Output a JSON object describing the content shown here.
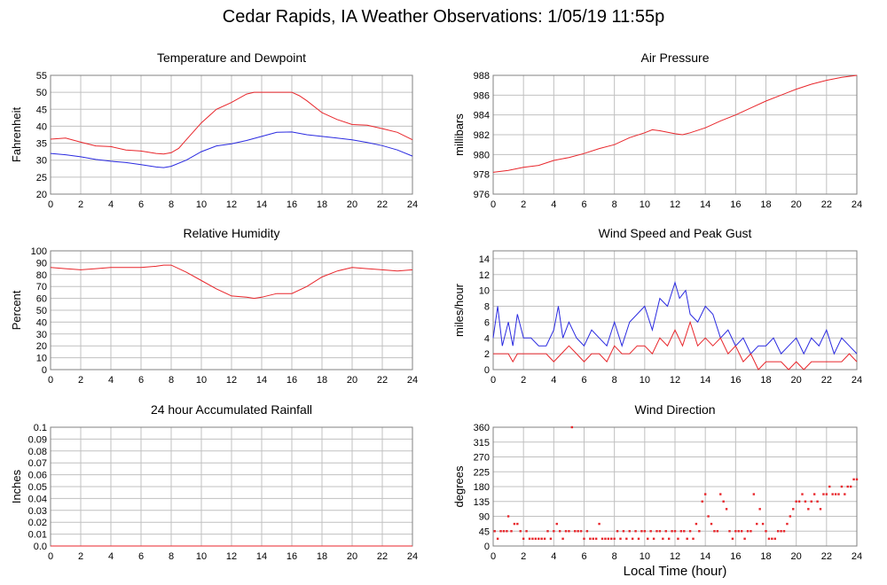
{
  "title": "Cedar Rapids, IA Weather Observations: 1/05/19 11:55p",
  "xlabel": "Local Time (hour)",
  "colors": {
    "primary": "#e8262b",
    "secondary": "#2a2ae0",
    "grid": "#c0c0c0"
  },
  "chart_data": [
    {
      "id": "temp",
      "type": "line",
      "title": "Temperature and Dewpoint",
      "ylabel": "Fahrenheit",
      "xlim": [
        0,
        24
      ],
      "ylim": [
        20,
        55
      ],
      "xticks": [
        "0",
        "2",
        "4",
        "6",
        "8",
        "10",
        "12",
        "14",
        "16",
        "18",
        "20",
        "22",
        "24"
      ],
      "yticks": [
        "20",
        "25",
        "30",
        "35",
        "40",
        "45",
        "50",
        "55"
      ],
      "series": [
        {
          "color": "#e8262b",
          "x": [
            0,
            1,
            2,
            3,
            4,
            5,
            6,
            7,
            7.5,
            8,
            8.5,
            9,
            10,
            11,
            12,
            13,
            13.5,
            14,
            15,
            16,
            16.5,
            17,
            18,
            19,
            20,
            21,
            22,
            23,
            24
          ],
          "y": [
            36.2,
            36.5,
            35.3,
            34.2,
            34,
            33,
            32.7,
            32,
            31.8,
            32.2,
            33.5,
            36,
            41,
            45,
            47,
            49.5,
            50,
            50,
            50,
            50,
            49,
            47.5,
            44,
            42,
            40.5,
            40.3,
            39.3,
            38.2,
            36
          ]
        },
        {
          "color": "#2a2ae0",
          "x": [
            0,
            1,
            2,
            3,
            4,
            5,
            6,
            7,
            7.5,
            8,
            9,
            10,
            11,
            12,
            13,
            14,
            15,
            16,
            17,
            18,
            19,
            20,
            21,
            22,
            23,
            24
          ],
          "y": [
            32,
            31.6,
            31,
            30.2,
            29.7,
            29.3,
            28.7,
            28,
            27.8,
            28.2,
            30,
            32.5,
            34.2,
            34.8,
            35.8,
            37,
            38.2,
            38.3,
            37.5,
            37,
            36.5,
            36,
            35.2,
            34.3,
            33,
            31.2
          ]
        }
      ]
    },
    {
      "id": "pressure",
      "type": "line",
      "title": "Air Pressure",
      "ylabel": "millibars",
      "xlim": [
        0,
        24
      ],
      "ylim": [
        976,
        988
      ],
      "xticks": [
        "0",
        "2",
        "4",
        "6",
        "8",
        "10",
        "12",
        "14",
        "16",
        "18",
        "20",
        "22",
        "24"
      ],
      "yticks": [
        "976",
        "978",
        "980",
        "982",
        "984",
        "986",
        "988"
      ],
      "series": [
        {
          "color": "#e8262b",
          "x": [
            0,
            1,
            2,
            3,
            4,
            5,
            6,
            7,
            8,
            9,
            10,
            10.5,
            11,
            12,
            12.5,
            13,
            14,
            15,
            16,
            17,
            18,
            19,
            20,
            21,
            22,
            23,
            24
          ],
          "y": [
            978.2,
            978.4,
            978.7,
            978.9,
            979.4,
            979.7,
            980.1,
            980.6,
            981,
            981.7,
            982.2,
            982.5,
            982.4,
            982.1,
            982,
            982.2,
            982.7,
            983.4,
            984,
            984.7,
            985.4,
            986,
            986.6,
            987.1,
            987.5,
            987.8,
            988
          ]
        }
      ]
    },
    {
      "id": "humidity",
      "type": "line",
      "title": "Relative Humidity",
      "ylabel": "Percent",
      "xlim": [
        0,
        24
      ],
      "ylim": [
        0,
        100
      ],
      "xticks": [
        "0",
        "2",
        "4",
        "6",
        "8",
        "10",
        "12",
        "14",
        "16",
        "18",
        "20",
        "22",
        "24"
      ],
      "yticks": [
        "0",
        "10",
        "20",
        "30",
        "40",
        "50",
        "60",
        "70",
        "80",
        "90",
        "100"
      ],
      "series": [
        {
          "color": "#e8262b",
          "x": [
            0,
            1,
            2,
            3,
            4,
            5,
            6,
            7,
            7.5,
            8,
            9,
            10,
            11,
            12,
            13,
            13.5,
            14,
            15,
            16,
            17,
            18,
            19,
            20,
            21,
            22,
            23,
            24
          ],
          "y": [
            86,
            85,
            84,
            85,
            86,
            86,
            86,
            87,
            88,
            88,
            82,
            75,
            68,
            62,
            61,
            60,
            61,
            64,
            64,
            70,
            78,
            83,
            86,
            85,
            84,
            83,
            84
          ]
        }
      ]
    },
    {
      "id": "wind",
      "type": "line",
      "title": "Wind Speed and Peak Gust",
      "ylabel": "miles/hour",
      "xlim": [
        0,
        24
      ],
      "ylim": [
        0,
        15
      ],
      "xticks": [
        "0",
        "2",
        "4",
        "6",
        "8",
        "10",
        "12",
        "14",
        "16",
        "18",
        "20",
        "22",
        "24"
      ],
      "yticks": [
        "0",
        "2",
        "4",
        "6",
        "8",
        "10",
        "12",
        "14"
      ],
      "series": [
        {
          "color": "#2a2ae0",
          "x": [
            0,
            0.3,
            0.6,
            1,
            1.3,
            1.6,
            2,
            2.5,
            3,
            3.5,
            4,
            4.3,
            4.6,
            5,
            5.5,
            6,
            6.5,
            7,
            7.5,
            8,
            8.5,
            9,
            9.5,
            10,
            10.5,
            11,
            11.5,
            12,
            12.3,
            12.7,
            13,
            13.5,
            14,
            14.5,
            15,
            15.5,
            16,
            16.5,
            17,
            17.5,
            18,
            18.5,
            19,
            19.5,
            20,
            20.5,
            21,
            21.5,
            22,
            22.5,
            23,
            23.5,
            24
          ],
          "y": [
            4,
            8,
            3,
            6,
            3,
            7,
            4,
            4,
            3,
            3,
            5,
            8,
            4,
            6,
            4,
            3,
            5,
            4,
            3,
            6,
            3,
            6,
            7,
            8,
            5,
            9,
            8,
            11,
            9,
            10,
            7,
            6,
            8,
            7,
            4,
            5,
            3,
            4,
            2,
            3,
            3,
            4,
            2,
            3,
            4,
            2,
            4,
            3,
            5,
            2,
            4,
            3,
            2
          ]
        },
        {
          "color": "#e8262b",
          "x": [
            0,
            0.5,
            1,
            1.3,
            1.6,
            2,
            2.5,
            3,
            3.5,
            4,
            4.5,
            5,
            5.5,
            6,
            6.5,
            7,
            7.5,
            8,
            8.5,
            9,
            9.5,
            10,
            10.5,
            11,
            11.5,
            12,
            12.5,
            13,
            13.5,
            14,
            14.5,
            15,
            15.5,
            16,
            16.5,
            17,
            17.5,
            18,
            18.5,
            19,
            19.5,
            20,
            20.5,
            21,
            21.5,
            22,
            22.5,
            23,
            23.5,
            24
          ],
          "y": [
            2,
            2,
            2,
            1,
            2,
            2,
            2,
            2,
            2,
            1,
            2,
            3,
            2,
            1,
            2,
            2,
            1,
            3,
            2,
            2,
            3,
            3,
            2,
            4,
            3,
            5,
            3,
            6,
            3,
            4,
            3,
            4,
            2,
            3,
            1,
            2,
            0,
            1,
            1,
            1,
            0,
            1,
            0,
            1,
            1,
            1,
            1,
            1,
            2,
            1
          ]
        }
      ]
    },
    {
      "id": "rain",
      "type": "line",
      "title": "24 hour Accumulated Rainfall",
      "ylabel": "Inches",
      "xlim": [
        0,
        24
      ],
      "ylim": [
        0,
        0.1
      ],
      "xticks": [
        "0",
        "2",
        "4",
        "6",
        "8",
        "10",
        "12",
        "14",
        "16",
        "18",
        "20",
        "22",
        "24"
      ],
      "yticks": [
        "0.0",
        "0.01",
        "0.02",
        "0.03",
        "0.04",
        "0.05",
        "0.06",
        "0.07",
        "0.08",
        "0.09",
        "0.1"
      ],
      "series": [
        {
          "color": "#e8262b",
          "x": [
            0,
            24
          ],
          "y": [
            0,
            0
          ]
        }
      ]
    },
    {
      "id": "direction",
      "type": "scatter",
      "title": "Wind Direction",
      "ylabel": "degrees",
      "xlim": [
        0,
        24
      ],
      "ylim": [
        0,
        360
      ],
      "xticks": [
        "0",
        "2",
        "4",
        "6",
        "8",
        "10",
        "12",
        "14",
        "16",
        "18",
        "20",
        "22",
        "24"
      ],
      "yticks": [
        "0",
        "45",
        "90",
        "135",
        "180",
        "225",
        "270",
        "315",
        "360"
      ],
      "series": [
        {
          "color": "#e8262b",
          "x": [
            0.1,
            0.3,
            0.5,
            0.7,
            0.9,
            1.0,
            1.2,
            1.4,
            1.6,
            1.8,
            2.0,
            2.2,
            2.4,
            2.6,
            2.8,
            3.0,
            3.2,
            3.4,
            3.6,
            3.8,
            4.0,
            4.2,
            4.4,
            4.6,
            4.8,
            5.0,
            5.2,
            5.4,
            5.6,
            5.8,
            6.0,
            6.2,
            6.4,
            6.6,
            6.8,
            7.0,
            7.2,
            7.4,
            7.6,
            7.8,
            8.0,
            8.2,
            8.4,
            8.6,
            8.8,
            9.0,
            9.2,
            9.4,
            9.6,
            9.8,
            10.0,
            10.2,
            10.4,
            10.6,
            10.8,
            11.0,
            11.2,
            11.4,
            11.6,
            11.8,
            12.0,
            12.2,
            12.4,
            12.6,
            12.8,
            13.0,
            13.2,
            13.4,
            13.6,
            13.8,
            14.0,
            14.2,
            14.4,
            14.6,
            14.8,
            15.0,
            15.2,
            15.4,
            15.6,
            15.8,
            16.0,
            16.2,
            16.4,
            16.6,
            16.8,
            17.0,
            17.2,
            17.4,
            17.6,
            17.8,
            18.0,
            18.2,
            18.4,
            18.6,
            18.8,
            19.0,
            19.2,
            19.4,
            19.6,
            19.8,
            20.0,
            20.2,
            20.4,
            20.6,
            20.8,
            21.0,
            21.2,
            21.4,
            21.6,
            21.8,
            22.0,
            22.2,
            22.4,
            22.6,
            22.8,
            23.0,
            23.2,
            23.4,
            23.6,
            23.8,
            24.0
          ],
          "y": [
            45,
            22,
            45,
            45,
            45,
            90,
            45,
            67,
            67,
            45,
            22,
            45,
            22,
            22,
            22,
            22,
            22,
            22,
            45,
            22,
            45,
            67,
            45,
            22,
            45,
            45,
            360,
            45,
            45,
            45,
            22,
            45,
            22,
            22,
            22,
            67,
            22,
            22,
            22,
            22,
            22,
            45,
            22,
            45,
            22,
            45,
            22,
            45,
            22,
            45,
            45,
            22,
            45,
            22,
            45,
            45,
            22,
            45,
            22,
            45,
            45,
            22,
            45,
            45,
            22,
            45,
            22,
            67,
            45,
            135,
            157,
            90,
            67,
            45,
            45,
            157,
            135,
            112,
            45,
            22,
            45,
            45,
            45,
            22,
            45,
            45,
            157,
            67,
            112,
            67,
            45,
            22,
            22,
            22,
            45,
            45,
            45,
            67,
            90,
            112,
            135,
            135,
            157,
            135,
            112,
            135,
            157,
            135,
            112,
            157,
            157,
            180,
            157,
            157,
            157,
            180,
            157,
            180,
            180,
            202,
            202
          ]
        }
      ]
    }
  ]
}
